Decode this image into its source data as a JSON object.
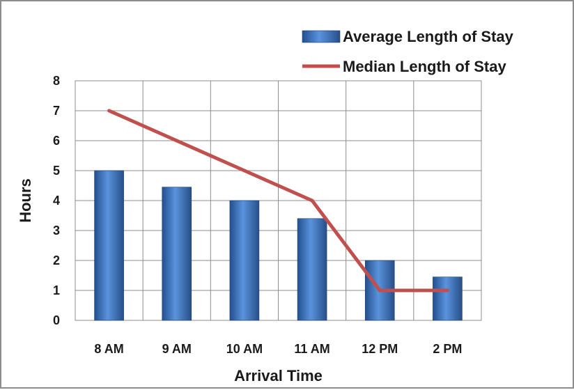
{
  "chart_data": {
    "type": "bar",
    "categories": [
      "8 AM",
      "9 AM",
      "10 AM",
      "11 AM",
      "12 PM",
      "2 PM"
    ],
    "series": [
      {
        "name": "Average Length of Stay",
        "type": "bar",
        "values": [
          5.0,
          4.45,
          4.0,
          3.4,
          2.0,
          1.45
        ],
        "color": "#3f79c7"
      },
      {
        "name": "Median Length of Stay",
        "type": "line",
        "values": [
          7,
          6,
          5,
          4,
          1,
          1
        ],
        "color": "#c0504d"
      }
    ],
    "xlabel": "Arrival Time",
    "ylabel": "Hours",
    "ylim": [
      0,
      8
    ],
    "yticks": [
      "0",
      "1",
      "2",
      "3",
      "4",
      "5",
      "6",
      "7",
      "8"
    ],
    "grid": true,
    "legend_position": "top-right"
  }
}
